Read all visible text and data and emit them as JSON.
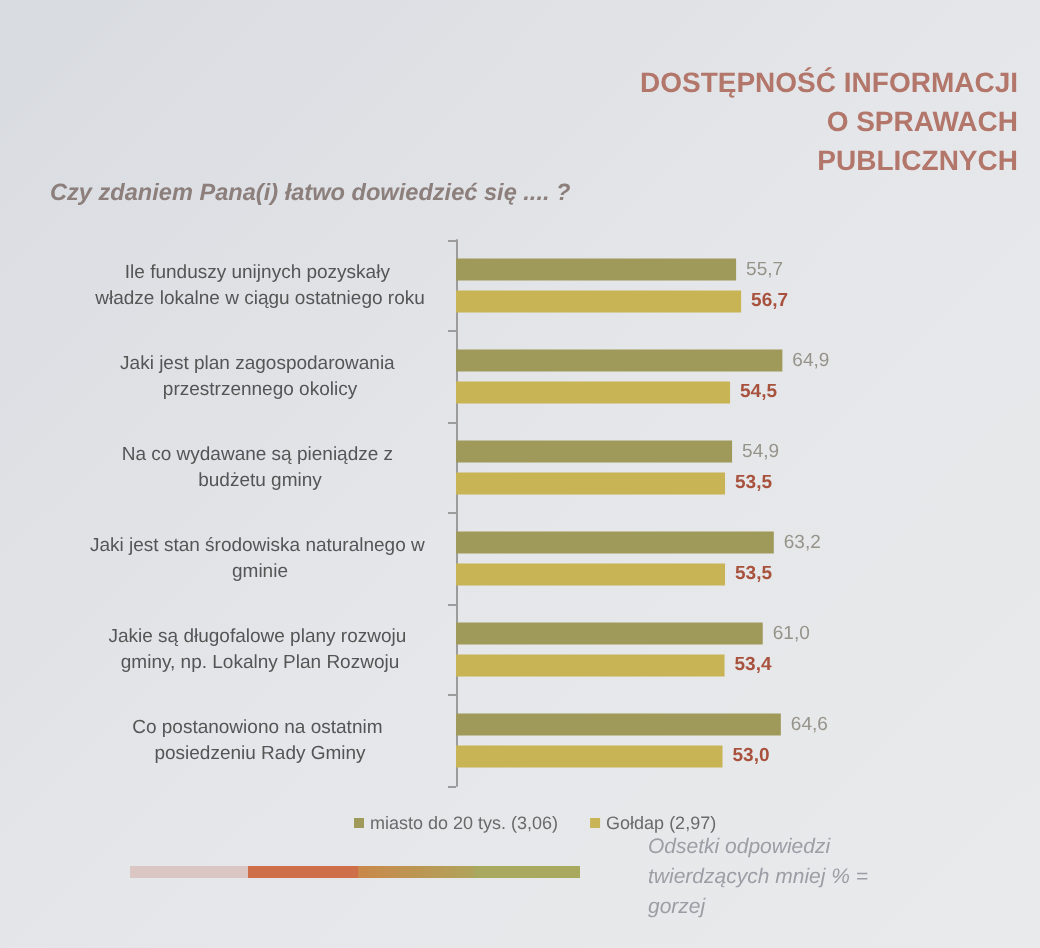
{
  "chart_data": {
    "type": "bar",
    "orientation": "horizontal",
    "title": "DOSTĘPNOŚĆ INFORMACJI\nO SPRAWACH\nPUBLICZNYCH",
    "subtitle": "Czy zdaniem Pana(i) łatwo dowiedzieć się .... ?",
    "categories": [
      "Ile funduszy unijnych pozyskały władze lokalne w ciągu ostatniego roku",
      "Jaki jest plan zagospodarowania przestrzennego okolicy",
      "Na co wydawane są pieniądze z budżetu gminy",
      "Jaki jest stan środowiska naturalnego w gminie",
      "Jakie są długofalowe plany rozwoju gminy, np. Lokalny Plan Rozwoju",
      "Co postanowiono na ostatnim posiedzeniu Rady Gminy"
    ],
    "series": [
      {
        "name": "miasto do 20 tys. (3,06)",
        "color": "#a09a5a",
        "values": [
          55.7,
          64.9,
          54.9,
          63.2,
          61.0,
          64.6
        ],
        "value_labels": [
          "55,7",
          "64,9",
          "54,9",
          "63,2",
          "61,0",
          "64,6"
        ]
      },
      {
        "name": "Gołdap (2,97)",
        "color": "#c8b455",
        "values": [
          56.7,
          54.5,
          53.5,
          53.5,
          53.4,
          53.0
        ],
        "value_labels": [
          "56,7",
          "54,5",
          "53,5",
          "53,5",
          "53,4",
          "53,0"
        ]
      }
    ],
    "tick_labels": "y",
    "legend": "bottom",
    "annotations": [
      "Odsetki odpowiedzi twierdzących mniej % = gorzej"
    ]
  }
}
